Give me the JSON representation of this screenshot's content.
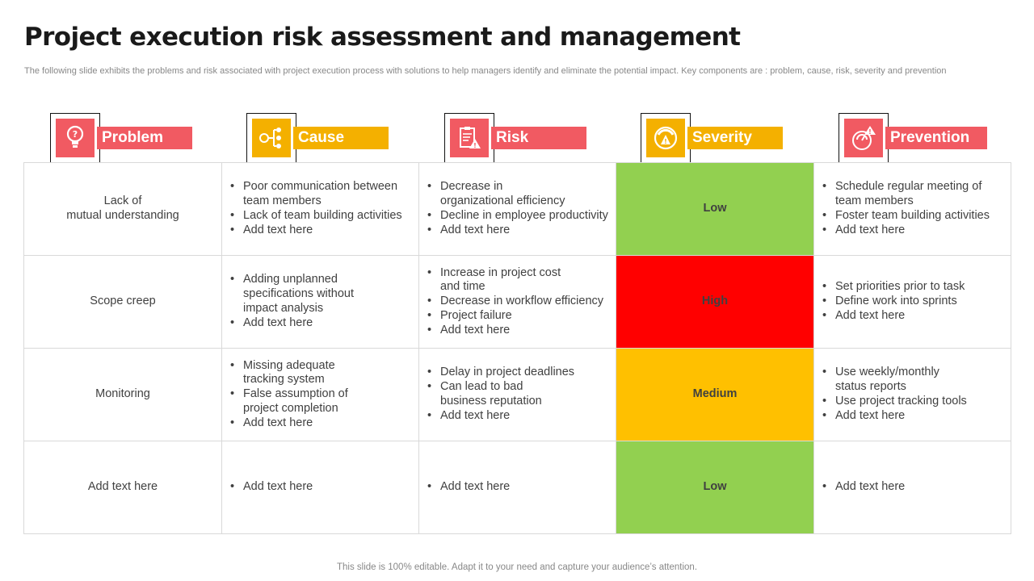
{
  "page": {
    "title": "Project execution risk assessment and management",
    "subtitle": "The following slide exhibits the problems and risk associated with project execution process with solutions to help managers identify and eliminate the potential impact. Key components are : problem, cause, risk, severity and prevention",
    "footer": "This slide is 100% editable. Adapt it to your need and capture your audience’s attention."
  },
  "headers": [
    {
      "label": "Problem",
      "icon": "lightbulb-head-icon",
      "color": "#f15a62"
    },
    {
      "label": "Cause",
      "icon": "network-nodes-icon",
      "color": "#f4b000"
    },
    {
      "label": "Risk",
      "icon": "clipboard-warning-icon",
      "color": "#f15a62"
    },
    {
      "label": "Severity",
      "icon": "gauge-warning-icon",
      "color": "#f4b000"
    },
    {
      "label": "Prevention",
      "icon": "shield-alert-icon",
      "color": "#f15a62"
    }
  ],
  "rows": [
    {
      "problem": "Lack of\nmutual understanding",
      "cause": [
        "Poor communication between team members",
        "Lack of team building activities",
        "Add text here"
      ],
      "risk": [
        "Decrease in\norganizational efficiency",
        "Decline in employee productivity",
        "Add text here"
      ],
      "severity": "Low",
      "severity_color": "#92d050",
      "prevention": [
        "Schedule regular meeting of team members",
        "Foster team building activities",
        "Add text here"
      ]
    },
    {
      "problem": "Scope creep",
      "cause": [
        "Adding unplanned\nspecifications without\nimpact analysis",
        "Add text here"
      ],
      "risk": [
        "Increase in project cost\nand time",
        "Decrease in workflow efficiency",
        "Project failure",
        "Add text here"
      ],
      "severity": "High",
      "severity_color": "#ff0000",
      "prevention": [
        "Set priorities prior to task",
        "Define work into sprints",
        "Add text here"
      ]
    },
    {
      "problem": "Monitoring",
      "cause": [
        "Missing adequate\ntracking system",
        "False assumption of\nproject completion",
        "Add text here"
      ],
      "risk": [
        "Delay in project deadlines",
        "Can lead to bad\nbusiness reputation",
        "Add text here"
      ],
      "severity": "Medium",
      "severity_color": "#ffc000",
      "prevention": [
        "Use weekly/monthly\nstatus reports",
        "Use project tracking tools",
        "Add text here"
      ]
    },
    {
      "problem": "Add text here",
      "cause": [
        "Add text here"
      ],
      "risk": [
        "Add text here"
      ],
      "severity": "Low",
      "severity_color": "#92d050",
      "prevention": [
        "Add text here"
      ]
    }
  ]
}
